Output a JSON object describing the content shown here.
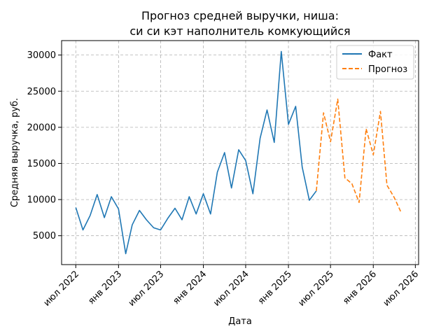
{
  "chart_data": {
    "type": "line",
    "title_lines": [
      "Прогноз средней выручки, ниша:",
      "си си кэт наполнитель комкующийся"
    ],
    "xlabel": "Дата",
    "ylabel": "Средняя выручка, руб.",
    "xlim": [
      "2022-05-01",
      "2026-07-15"
    ],
    "ylim": [
      1000,
      32000
    ],
    "yticks": [
      5000,
      10000,
      15000,
      20000,
      25000,
      30000
    ],
    "xticks": [
      {
        "date": "2022-07-01",
        "label": "июл 2022"
      },
      {
        "date": "2023-01-01",
        "label": "янв 2023"
      },
      {
        "date": "2023-07-01",
        "label": "июл 2023"
      },
      {
        "date": "2024-01-01",
        "label": "янв 2024"
      },
      {
        "date": "2024-07-01",
        "label": "июл 2024"
      },
      {
        "date": "2025-01-01",
        "label": "янв 2025"
      },
      {
        "date": "2025-07-01",
        "label": "июл 2025"
      },
      {
        "date": "2026-01-01",
        "label": "янв 2026"
      },
      {
        "date": "2026-07-01",
        "label": "июл 2026"
      }
    ],
    "grid": true,
    "legend_position": "top-right",
    "series": [
      {
        "name": "Факт",
        "color": "#1f77b4",
        "style": "solid",
        "points": [
          [
            "2022-07-01",
            8900
          ],
          [
            "2022-08-01",
            5800
          ],
          [
            "2022-09-01",
            7800
          ],
          [
            "2022-10-01",
            10700
          ],
          [
            "2022-11-01",
            7500
          ],
          [
            "2022-12-01",
            10400
          ],
          [
            "2023-01-01",
            8700
          ],
          [
            "2023-02-01",
            2500
          ],
          [
            "2023-03-01",
            6500
          ],
          [
            "2023-04-01",
            8500
          ],
          [
            "2023-05-01",
            7200
          ],
          [
            "2023-06-01",
            6100
          ],
          [
            "2023-07-01",
            5800
          ],
          [
            "2023-08-01",
            7400
          ],
          [
            "2023-09-01",
            8800
          ],
          [
            "2023-10-01",
            7200
          ],
          [
            "2023-11-01",
            10400
          ],
          [
            "2023-12-01",
            8000
          ],
          [
            "2024-01-01",
            10800
          ],
          [
            "2024-02-01",
            8000
          ],
          [
            "2024-03-01",
            13800
          ],
          [
            "2024-04-01",
            16500
          ],
          [
            "2024-05-01",
            11600
          ],
          [
            "2024-06-01",
            16900
          ],
          [
            "2024-07-01",
            15400
          ],
          [
            "2024-08-01",
            10800
          ],
          [
            "2024-09-01",
            18500
          ],
          [
            "2024-10-01",
            22400
          ],
          [
            "2024-11-01",
            17900
          ],
          [
            "2024-12-01",
            30500
          ],
          [
            "2025-01-01",
            20400
          ],
          [
            "2025-02-01",
            22900
          ],
          [
            "2025-03-01",
            14500
          ],
          [
            "2025-04-01",
            9900
          ],
          [
            "2025-05-01",
            11200
          ]
        ]
      },
      {
        "name": "Прогноз",
        "color": "#ff7f0e",
        "style": "dashed",
        "points": [
          [
            "2025-05-01",
            11200
          ],
          [
            "2025-06-01",
            22000
          ],
          [
            "2025-07-01",
            18000
          ],
          [
            "2025-08-01",
            23900
          ],
          [
            "2025-09-01",
            13000
          ],
          [
            "2025-10-01",
            12200
          ],
          [
            "2025-11-01",
            9600
          ],
          [
            "2025-12-01",
            19800
          ],
          [
            "2026-01-01",
            16200
          ],
          [
            "2026-02-01",
            22200
          ],
          [
            "2026-03-01",
            12000
          ],
          [
            "2026-04-01",
            10300
          ],
          [
            "2026-05-01",
            8200
          ]
        ]
      }
    ]
  }
}
